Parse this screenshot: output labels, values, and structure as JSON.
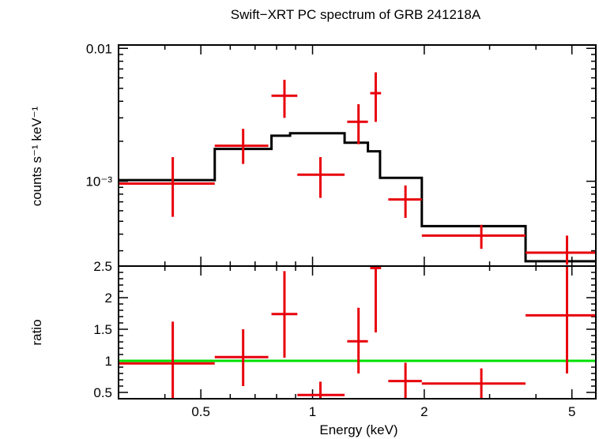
{
  "chart_data": [
    {
      "type": "line",
      "title": "Swift−XRT PC spectrum of GRB 241218A",
      "xlabel": "",
      "ylabel": "counts s⁻¹ keV⁻¹",
      "xscale": "log",
      "yscale": "log",
      "xlim": [
        0.3,
        5.8
      ],
      "ylim": [
        0.00023,
        0.0106
      ],
      "y_ticks": [
        {
          "value": 0.01,
          "label": "0.01"
        },
        {
          "value": 0.001,
          "label": "10⁻³"
        }
      ],
      "series": [
        {
          "style": "data-crosses",
          "color": "#e8000b",
          "points": [
            {
              "x": 0.42,
              "xlo": 0.3,
              "xhi": 0.545,
              "y": 0.00096,
              "ylo": 0.00054,
              "yhi": 0.00152
            },
            {
              "x": 0.65,
              "xlo": 0.545,
              "xhi": 0.76,
              "y": 0.00185,
              "ylo": 0.00135,
              "yhi": 0.00248
            },
            {
              "x": 0.84,
              "xlo": 0.775,
              "xhi": 0.91,
              "y": 0.0044,
              "ylo": 0.003,
              "yhi": 0.0058
            },
            {
              "x": 1.05,
              "xlo": 0.91,
              "xhi": 1.22,
              "y": 0.00112,
              "ylo": 0.00075,
              "yhi": 0.00152
            },
            {
              "x": 1.33,
              "xlo": 1.24,
              "xhi": 1.41,
              "y": 0.0028,
              "ylo": 0.0019,
              "yhi": 0.0038
            },
            {
              "x": 1.48,
              "xlo": 1.43,
              "xhi": 1.53,
              "y": 0.0046,
              "ylo": 0.0028,
              "yhi": 0.0066
            },
            {
              "x": 1.78,
              "xlo": 1.6,
              "xhi": 1.97,
              "y": 0.00073,
              "ylo": 0.00053,
              "yhi": 0.00093
            },
            {
              "x": 2.85,
              "xlo": 1.97,
              "xhi": 3.75,
              "y": 0.00039,
              "ylo": 0.00031,
              "yhi": 0.00047
            },
            {
              "x": 4.85,
              "xlo": 3.75,
              "xhi": 5.8,
              "y": 0.00029,
              "ylo": 0.000235,
              "yhi": 0.00039
            }
          ]
        },
        {
          "style": "model-step",
          "color": "#000000",
          "steps": [
            {
              "xlo": 0.3,
              "xhi": 0.545,
              "y": 0.00102
            },
            {
              "xlo": 0.545,
              "xhi": 0.775,
              "y": 0.00175
            },
            {
              "xlo": 0.775,
              "xhi": 0.87,
              "y": 0.0022
            },
            {
              "xlo": 0.87,
              "xhi": 1.22,
              "y": 0.0023
            },
            {
              "xlo": 1.22,
              "xhi": 1.41,
              "y": 0.00195
            },
            {
              "xlo": 1.41,
              "xhi": 1.52,
              "y": 0.00168
            },
            {
              "xlo": 1.52,
              "xhi": 1.97,
              "y": 0.00106
            },
            {
              "xlo": 1.97,
              "xhi": 3.75,
              "y": 0.00046
            },
            {
              "xlo": 3.75,
              "xhi": 5.8,
              "y": 0.00025
            }
          ]
        }
      ]
    },
    {
      "type": "line",
      "title": "",
      "xlabel": "Energy (keV)",
      "ylabel": "ratio",
      "xscale": "log",
      "yscale": "linear",
      "xlim": [
        0.3,
        5.8
      ],
      "ylim": [
        0.4,
        2.5
      ],
      "x_ticks": [
        {
          "value": 0.5,
          "label": "0.5"
        },
        {
          "value": 1,
          "label": "1"
        },
        {
          "value": 2,
          "label": "2"
        },
        {
          "value": 5,
          "label": "5"
        }
      ],
      "y_ticks": [
        {
          "value": 0.5,
          "label": "0.5"
        },
        {
          "value": 1,
          "label": "1"
        },
        {
          "value": 1.5,
          "label": "1.5"
        },
        {
          "value": 2,
          "label": "2"
        },
        {
          "value": 2.5,
          "label": "2.5"
        }
      ],
      "reference_line": {
        "y": 1,
        "color": "#00e000"
      },
      "series": [
        {
          "style": "data-crosses",
          "color": "#e8000b",
          "points": [
            {
              "x": 0.42,
              "xlo": 0.3,
              "xhi": 0.545,
              "y": 0.96,
              "ylo": 0.4,
              "yhi": 1.62
            },
            {
              "x": 0.65,
              "xlo": 0.545,
              "xhi": 0.76,
              "y": 1.06,
              "ylo": 0.6,
              "yhi": 1.5
            },
            {
              "x": 0.84,
              "xlo": 0.775,
              "xhi": 0.91,
              "y": 1.74,
              "ylo": 1.05,
              "yhi": 2.42
            },
            {
              "x": 1.05,
              "xlo": 0.91,
              "xhi": 1.22,
              "y": 0.46,
              "ylo": 0.4,
              "yhi": 0.67
            },
            {
              "x": 1.33,
              "xlo": 1.24,
              "xhi": 1.41,
              "y": 1.31,
              "ylo": 0.8,
              "yhi": 1.84
            },
            {
              "x": 1.48,
              "xlo": 1.43,
              "xhi": 1.53,
              "y": 2.47,
              "ylo": 1.45,
              "yhi": 2.5
            },
            {
              "x": 1.78,
              "xlo": 1.6,
              "xhi": 1.97,
              "y": 0.68,
              "ylo": 0.4,
              "yhi": 0.97
            },
            {
              "x": 2.85,
              "xlo": 1.97,
              "xhi": 3.75,
              "y": 0.64,
              "ylo": 0.4,
              "yhi": 0.88
            },
            {
              "x": 4.85,
              "xlo": 3.75,
              "xhi": 5.8,
              "y": 1.72,
              "ylo": 0.8,
              "yhi": 2.5
            }
          ]
        }
      ]
    }
  ]
}
